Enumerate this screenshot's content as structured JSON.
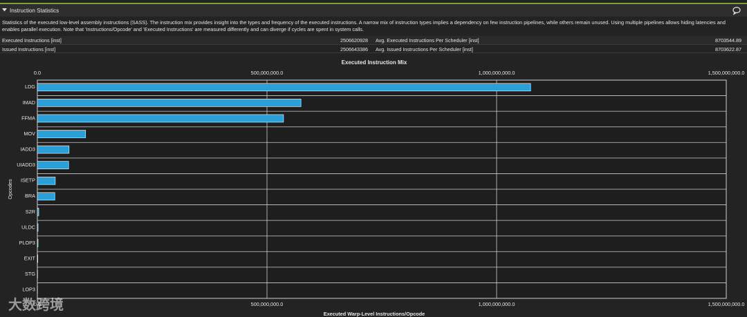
{
  "header": {
    "title": "Instruction Statistics"
  },
  "description": "Statistics of the executed low-level assembly instructions (SASS). The instruction mix provides insight into the types and frequency of the executed instructions. A narrow mix of instruction types implies a dependency on few instruction pipelines, while others remain unused. Using multiple pipelines allows hiding latencies and enables parallel execution. Note that 'Instructions/Opcode' and 'Executed Instructions' are measured differently and can diverge if cycles are spent in system calls.",
  "table": {
    "rows": [
      [
        "Executed Instructions [inst]",
        2506620928,
        "Avg. Executed Instructions Per Scheduler [inst]",
        8703544.89
      ],
      [
        "Issued Instructions [inst]",
        2506643386,
        "Avg. Issued Instructions Per Scheduler [inst]",
        8703622.87
      ]
    ]
  },
  "watermark": "大数跨境",
  "chart_data": {
    "type": "hbar",
    "title": "Executed Instruction Mix",
    "x_label": "Executed Warp-Level Instructions/Opcode",
    "y_label": "Opcodes",
    "categories": [
      "LDG",
      "IMAD",
      "FFMA",
      "MOV",
      "IADD3",
      "UIADD3",
      "ISETP",
      "BRA",
      "S2R",
      "ULDC",
      "PLOP3",
      "EXIT",
      "STG",
      "LOP3"
    ],
    "values": [
      1074000000,
      574000000,
      536000000,
      105000000,
      69000000,
      68000000,
      39000000,
      38000000,
      3000000,
      1500000,
      1500000,
      1000000,
      500000,
      300000
    ],
    "color": "#2a9fd8",
    "xlim": [
      0,
      1500000000
    ],
    "xticks": [
      {
        "value": 0,
        "label": "0.0"
      },
      {
        "value": 500000000,
        "label": "500,000,000.0"
      },
      {
        "value": 1000000000,
        "label": "1,000,000,000.0"
      },
      {
        "value": 1500000000,
        "label": "1,500,000,000.0"
      }
    ],
    "grid": true
  }
}
